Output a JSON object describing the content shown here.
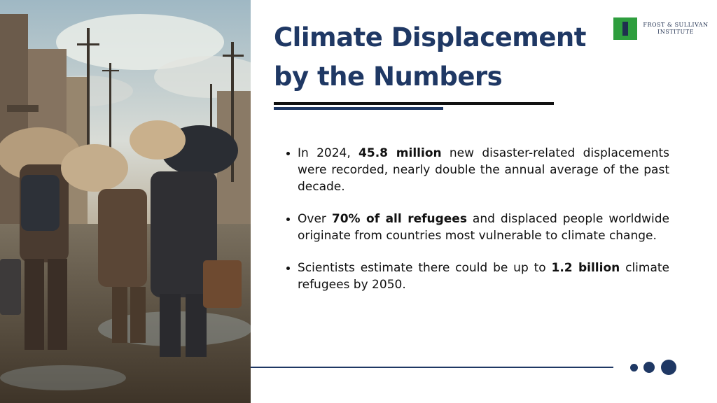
{
  "slide": {
    "title_line1": "Climate Displacement",
    "title_line2": "by the Numbers"
  },
  "logo": {
    "line1": "FROST & SULLIVAN",
    "line2": "INSTITUTE",
    "icon": "institute-pillar-icon",
    "color_box": "#2e9e3e",
    "color_text": "#1f2f4f"
  },
  "bullets": [
    {
      "pre": "In 2024, ",
      "bold": "45.8 million",
      "post": " new disaster-related displacements were recorded, nearly double the annual average of the past decade."
    },
    {
      "pre": "Over ",
      "bold": "70% of all refugees",
      "post": " and displaced people worldwide originate from countries most vulnerable to climate change."
    },
    {
      "pre": "Scientists estimate there could be up to ",
      "bold": "1.2 billion",
      "post": " climate refugees by 2050."
    }
  ],
  "colors": {
    "accent": "#1f3864",
    "rule": "#111111"
  }
}
